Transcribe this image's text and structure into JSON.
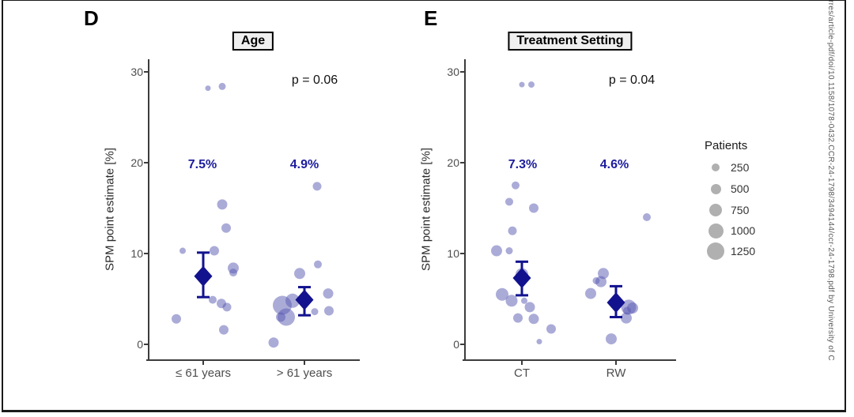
{
  "page": {
    "sidebar_text": "rres/article-pdf/doi/10.1158/1078-0432.CCR-24-1798/3494144/ccr-24-1798.pdf by University of C",
    "colors": {
      "bubble": "#5757b2",
      "mean_diamond": "#12128f",
      "mean_label": "#1c1c9e",
      "axis": "#3c3c3c",
      "legend_circle": "#b0b0b0"
    }
  },
  "legend": {
    "title": "Patients",
    "items": [
      {
        "label": "250",
        "value": 250,
        "r": 5
      },
      {
        "label": "500",
        "value": 500,
        "r": 6.5
      },
      {
        "label": "750",
        "value": 750,
        "r": 8
      },
      {
        "label": "1000",
        "value": 1000,
        "r": 9.5
      },
      {
        "label": "1250",
        "value": 1250,
        "r": 11
      }
    ]
  },
  "chart_data": [
    {
      "type": "scatter",
      "panel_label": "D",
      "title": "Age",
      "p_label": "p = 0.06",
      "ylabel": "SPM point estimate [%]",
      "yticks": [
        30,
        20,
        10,
        0
      ],
      "ylim": [
        -1.7,
        31.4
      ],
      "grid": false,
      "bubble_unit": "patients",
      "groups": [
        {
          "label": "≤ 61 years",
          "mean_label": "7.5%",
          "mean": 7.5,
          "ci": [
            5.2,
            10.1
          ],
          "points": [
            {
              "v": 28.2,
              "dx": 6,
              "r": 3.5
            },
            {
              "v": 28.4,
              "dx": 24,
              "r": 4.5
            },
            {
              "v": 15.4,
              "dx": 24,
              "r": 6.5
            },
            {
              "v": 12.8,
              "dx": 29,
              "r": 6
            },
            {
              "v": 10.3,
              "dx": -26,
              "r": 4
            },
            {
              "v": 10.3,
              "dx": 14,
              "r": 6
            },
            {
              "v": 8.4,
              "dx": 38,
              "r": 7
            },
            {
              "v": 7.9,
              "dx": 38,
              "r": 5
            },
            {
              "v": 4.9,
              "dx": 12,
              "r": 5
            },
            {
              "v": 4.5,
              "dx": 23,
              "r": 6
            },
            {
              "v": 4.1,
              "dx": 30,
              "r": 5.5
            },
            {
              "v": 2.8,
              "dx": -34,
              "r": 6
            },
            {
              "v": 1.6,
              "dx": 26,
              "r": 6
            }
          ]
        },
        {
          "label": "> 61 years",
          "mean_label": "4.9%",
          "mean": 4.9,
          "ci": [
            3.2,
            6.3
          ],
          "points": [
            {
              "v": 17.4,
              "dx": 16,
              "r": 5.5
            },
            {
              "v": 8.8,
              "dx": 17,
              "r": 5
            },
            {
              "v": 7.8,
              "dx": -6,
              "r": 7
            },
            {
              "v": 5.6,
              "dx": 30,
              "r": 6.5
            },
            {
              "v": 4.8,
              "dx": -15,
              "r": 9
            },
            {
              "v": 4.3,
              "dx": -28,
              "r": 12
            },
            {
              "v": 3.7,
              "dx": 31,
              "r": 6
            },
            {
              "v": 3.6,
              "dx": 13,
              "r": 4.5
            },
            {
              "v": 3.0,
              "dx": -23,
              "r": 11
            },
            {
              "v": 3.0,
              "dx": -30,
              "r": 6
            },
            {
              "v": 0.2,
              "dx": -39,
              "r": 6.5
            }
          ]
        }
      ]
    },
    {
      "type": "scatter",
      "panel_label": "E",
      "title": "Treatment Setting",
      "p_label": "p = 0.04",
      "ylabel": "SPM point estimate [%]",
      "yticks": [
        30,
        20,
        10,
        0
      ],
      "ylim": [
        -1.7,
        31.4
      ],
      "grid": false,
      "bubble_unit": "patients",
      "groups": [
        {
          "label": "CT",
          "mean_label": "7.3%",
          "mean": 7.3,
          "ci": [
            5.4,
            9.1
          ],
          "points": [
            {
              "v": 28.6,
              "dx": 0,
              "r": 3.5
            },
            {
              "v": 28.6,
              "dx": 12,
              "r": 4
            },
            {
              "v": 17.5,
              "dx": -8,
              "r": 5
            },
            {
              "v": 15.7,
              "dx": -16,
              "r": 5
            },
            {
              "v": 15.0,
              "dx": 15,
              "r": 6
            },
            {
              "v": 12.5,
              "dx": -12,
              "r": 5.5
            },
            {
              "v": 10.3,
              "dx": -32,
              "r": 7
            },
            {
              "v": 10.3,
              "dx": -16,
              "r": 4.5
            },
            {
              "v": 7.7,
              "dx": 0,
              "r": 8
            },
            {
              "v": 5.5,
              "dx": -25,
              "r": 8
            },
            {
              "v": 4.8,
              "dx": -13,
              "r": 7.5
            },
            {
              "v": 4.8,
              "dx": 3,
              "r": 4
            },
            {
              "v": 4.1,
              "dx": 10,
              "r": 6.5
            },
            {
              "v": 2.9,
              "dx": -5,
              "r": 6
            },
            {
              "v": 2.8,
              "dx": 15,
              "r": 6.5
            },
            {
              "v": 1.7,
              "dx": 37,
              "r": 6
            },
            {
              "v": 0.3,
              "dx": 22,
              "r": 3.5
            }
          ]
        },
        {
          "label": "RW",
          "mean_label": "4.6%",
          "mean": 4.6,
          "ci": [
            3.0,
            6.4
          ],
          "points": [
            {
              "v": 14.0,
              "dx": 39,
              "r": 5
            },
            {
              "v": 7.8,
              "dx": -16,
              "r": 7
            },
            {
              "v": 7.0,
              "dx": -25,
              "r": 4.5
            },
            {
              "v": 6.9,
              "dx": -19,
              "r": 7
            },
            {
              "v": 5.6,
              "dx": -32,
              "r": 7
            },
            {
              "v": 4.1,
              "dx": 16,
              "r": 9.5
            },
            {
              "v": 4.0,
              "dx": 21,
              "r": 7
            },
            {
              "v": 3.7,
              "dx": 14,
              "r": 5
            },
            {
              "v": 2.9,
              "dx": 13,
              "r": 7
            },
            {
              "v": 0.6,
              "dx": -6,
              "r": 7
            }
          ]
        }
      ]
    }
  ]
}
